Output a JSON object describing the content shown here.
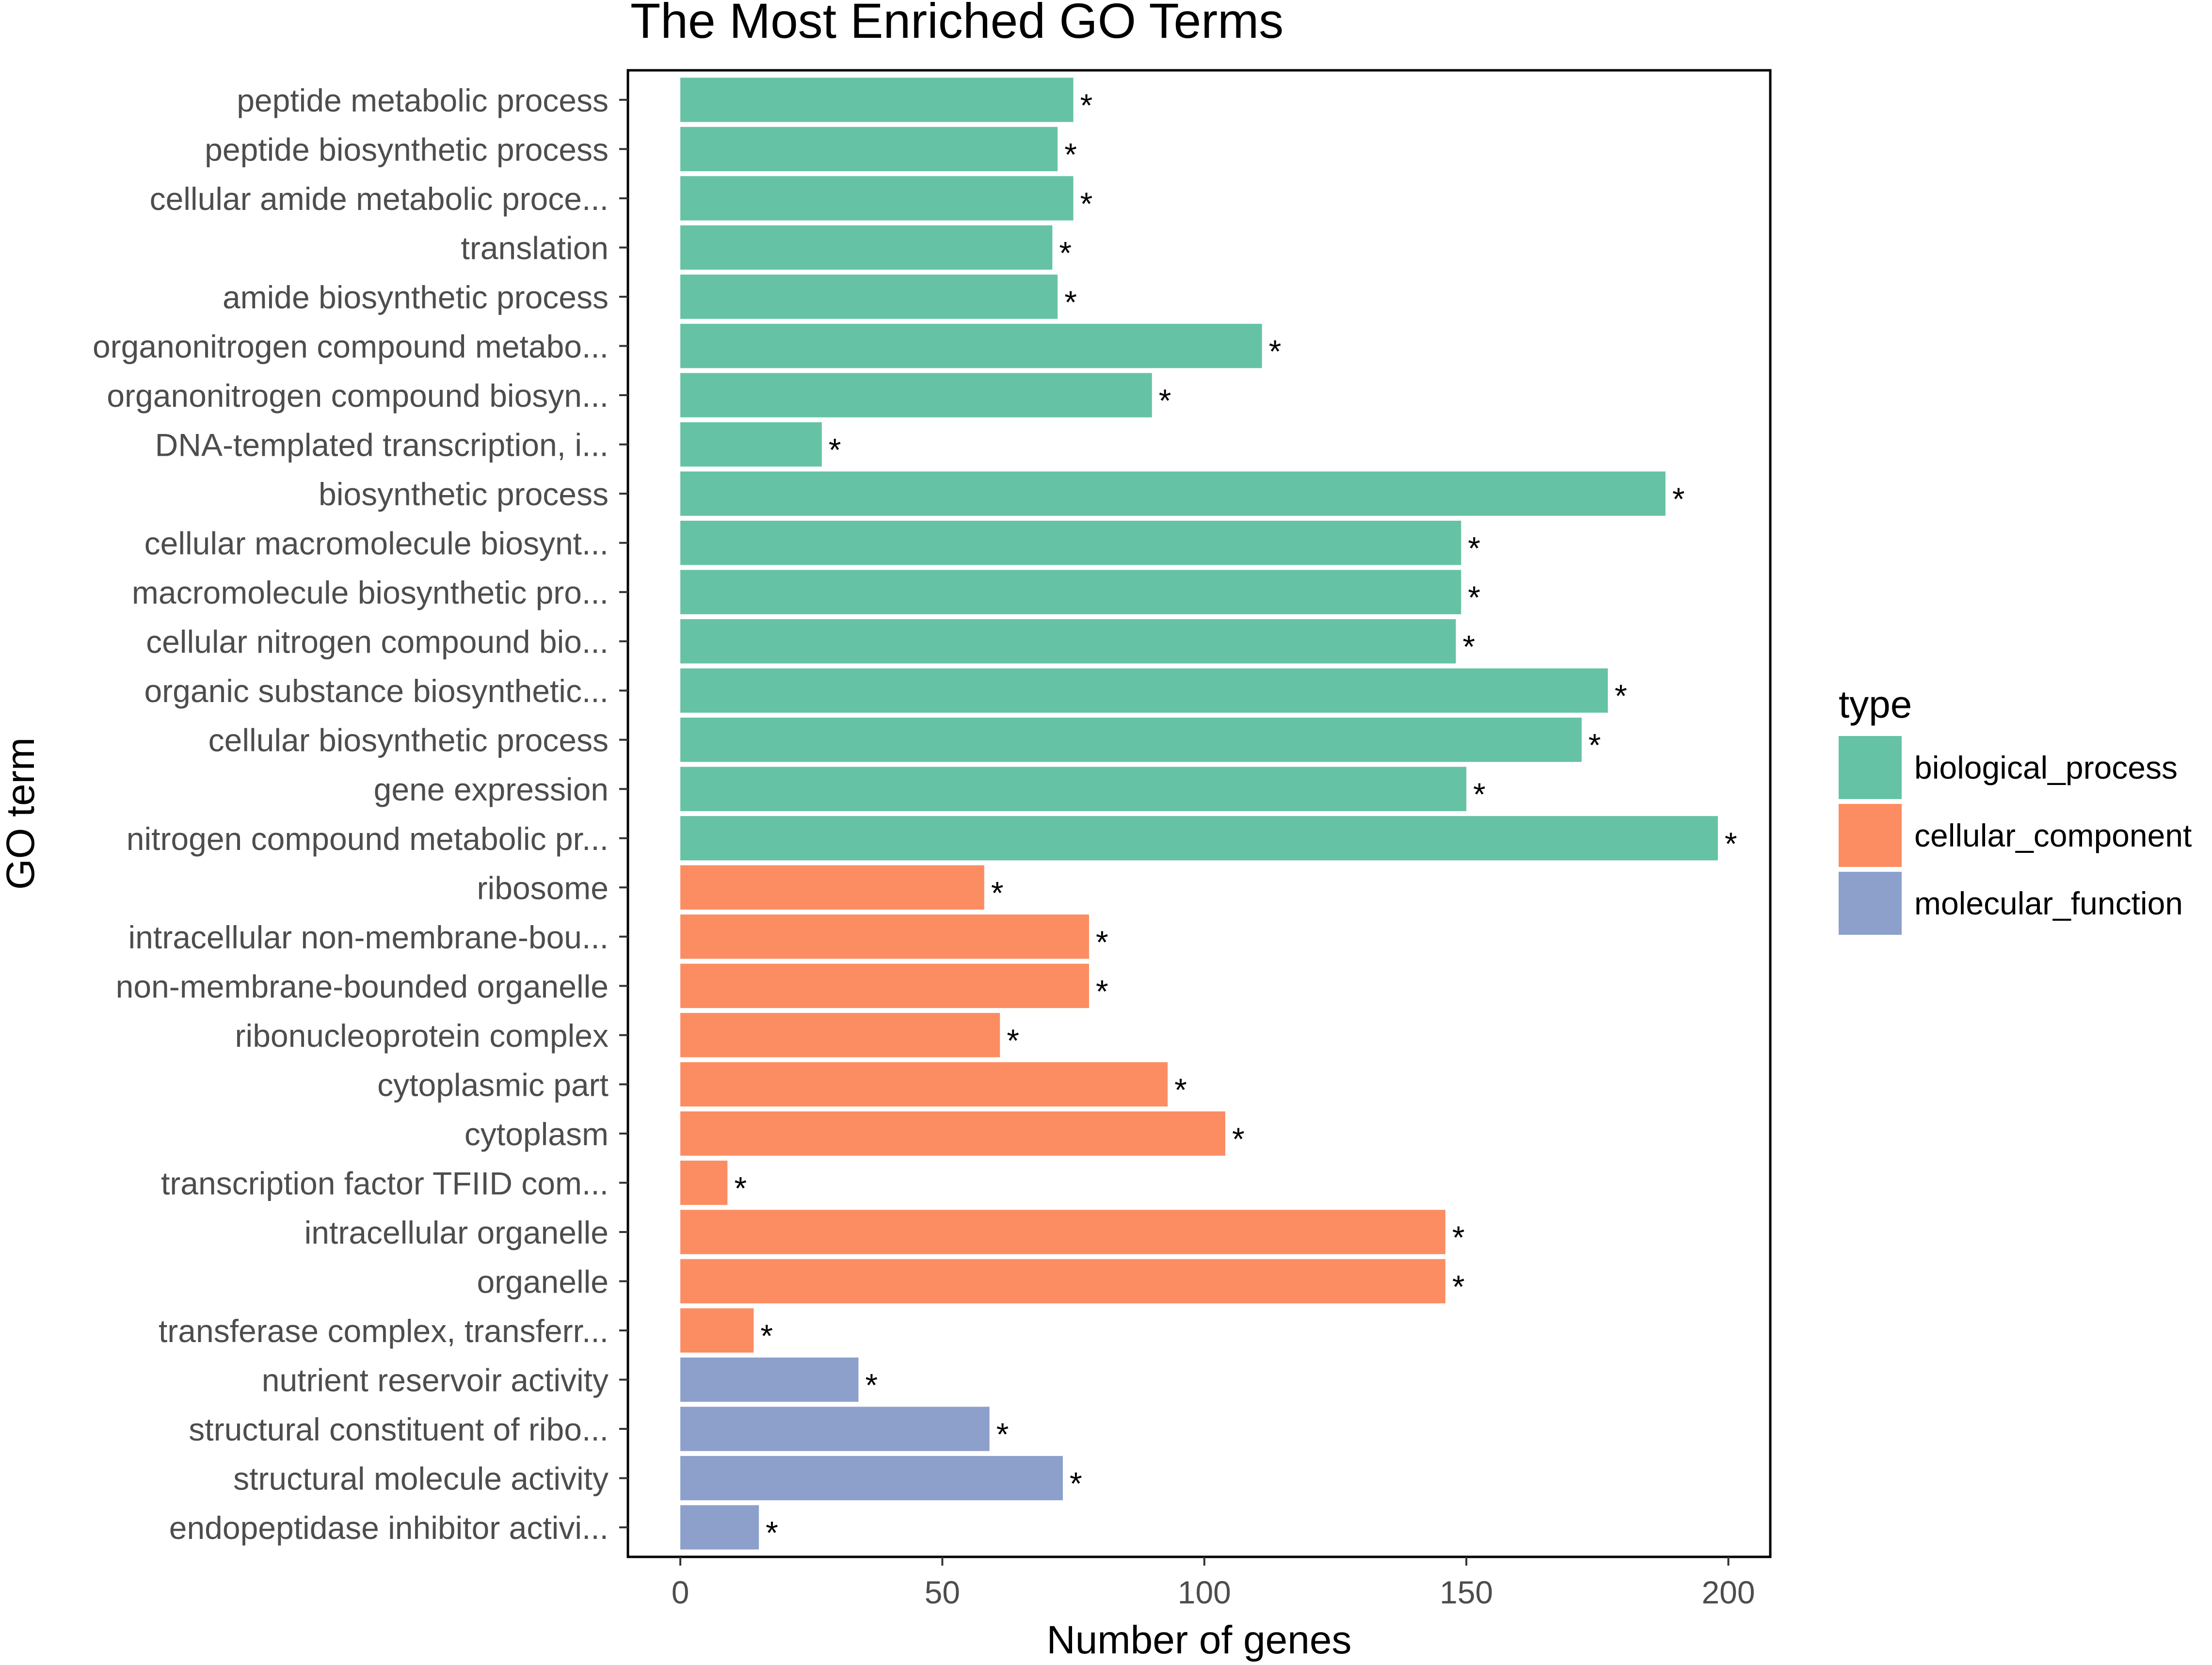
{
  "chart_data": {
    "type": "bar",
    "orientation": "horizontal",
    "title": "The Most Enriched GO Terms",
    "xlabel": "Number of genes",
    "ylabel": "GO term",
    "xlim": [
      -10,
      208
    ],
    "xticks": [
      0,
      50,
      100,
      150,
      200
    ],
    "legend": {
      "title": "type",
      "position": "right",
      "entries": [
        {
          "name": "biological_process",
          "color": "#66c2a5"
        },
        {
          "name": "cellular_component",
          "color": "#fc8d62"
        },
        {
          "name": "molecular_function",
          "color": "#8da0cb"
        }
      ]
    },
    "significance_marker": "*",
    "bars": [
      {
        "term": "peptide metabolic process",
        "value": 75,
        "type": "biological_process",
        "mark": "*"
      },
      {
        "term": "peptide biosynthetic process",
        "value": 72,
        "type": "biological_process",
        "mark": "*"
      },
      {
        "term": "cellular amide metabolic proce...",
        "value": 75,
        "type": "biological_process",
        "mark": "*"
      },
      {
        "term": "translation",
        "value": 71,
        "type": "biological_process",
        "mark": "*"
      },
      {
        "term": "amide biosynthetic process",
        "value": 72,
        "type": "biological_process",
        "mark": "*"
      },
      {
        "term": "organonitrogen compound metabo...",
        "value": 111,
        "type": "biological_process",
        "mark": "*"
      },
      {
        "term": "organonitrogen compound biosyn...",
        "value": 90,
        "type": "biological_process",
        "mark": "*"
      },
      {
        "term": "DNA-templated transcription, i...",
        "value": 27,
        "type": "biological_process",
        "mark": "*"
      },
      {
        "term": "biosynthetic process",
        "value": 188,
        "type": "biological_process",
        "mark": "*"
      },
      {
        "term": "cellular macromolecule biosynt...",
        "value": 149,
        "type": "biological_process",
        "mark": "*"
      },
      {
        "term": "macromolecule biosynthetic pro...",
        "value": 149,
        "type": "biological_process",
        "mark": "*"
      },
      {
        "term": "cellular nitrogen compound bio...",
        "value": 148,
        "type": "biological_process",
        "mark": "*"
      },
      {
        "term": "organic substance biosynthetic...",
        "value": 177,
        "type": "biological_process",
        "mark": "*"
      },
      {
        "term": "cellular biosynthetic process",
        "value": 172,
        "type": "biological_process",
        "mark": "*"
      },
      {
        "term": "gene expression",
        "value": 150,
        "type": "biological_process",
        "mark": "*"
      },
      {
        "term": "nitrogen compound metabolic pr...",
        "value": 198,
        "type": "biological_process",
        "mark": "*"
      },
      {
        "term": "ribosome",
        "value": 58,
        "type": "cellular_component",
        "mark": "*"
      },
      {
        "term": "intracellular non-membrane-bou...",
        "value": 78,
        "type": "cellular_component",
        "mark": "*"
      },
      {
        "term": "non-membrane-bounded organelle",
        "value": 78,
        "type": "cellular_component",
        "mark": "*"
      },
      {
        "term": "ribonucleoprotein complex",
        "value": 61,
        "type": "cellular_component",
        "mark": "*"
      },
      {
        "term": "cytoplasmic part",
        "value": 93,
        "type": "cellular_component",
        "mark": "*"
      },
      {
        "term": "cytoplasm",
        "value": 104,
        "type": "cellular_component",
        "mark": "*"
      },
      {
        "term": "transcription factor TFIID com...",
        "value": 9,
        "type": "cellular_component",
        "mark": "*"
      },
      {
        "term": "intracellular organelle",
        "value": 146,
        "type": "cellular_component",
        "mark": "*"
      },
      {
        "term": "organelle",
        "value": 146,
        "type": "cellular_component",
        "mark": "*"
      },
      {
        "term": "transferase complex, transferr...",
        "value": 14,
        "type": "cellular_component",
        "mark": "*"
      },
      {
        "term": "nutrient reservoir activity",
        "value": 34,
        "type": "molecular_function",
        "mark": "*"
      },
      {
        "term": "structural constituent of ribo...",
        "value": 59,
        "type": "molecular_function",
        "mark": "*"
      },
      {
        "term": "structural molecule activity",
        "value": 73,
        "type": "molecular_function",
        "mark": "*"
      },
      {
        "term": "endopeptidase inhibitor activi...",
        "value": 15,
        "type": "molecular_function",
        "mark": "*"
      }
    ]
  }
}
